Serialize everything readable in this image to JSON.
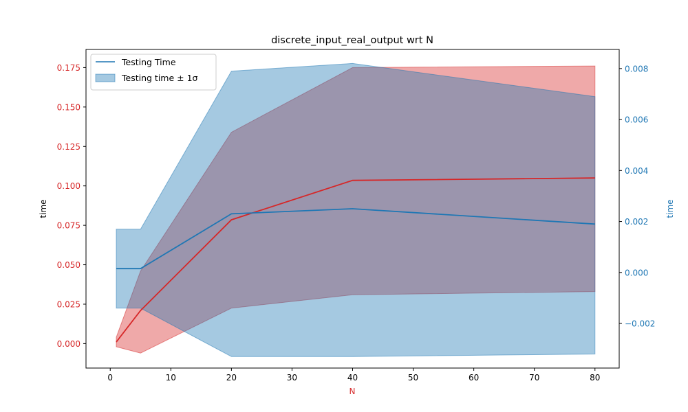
{
  "chart_data": {
    "type": "line",
    "title": "discrete_input_real_output wrt N",
    "xlabel": "N",
    "ylabel": "time",
    "y2label": "time",
    "xlim": [
      -4,
      84
    ],
    "ylim": [
      -0.0155,
      0.1865
    ],
    "y2lim": [
      -0.00375,
      0.00875
    ],
    "xticks": [
      0,
      10,
      20,
      30,
      40,
      50,
      60,
      70,
      80
    ],
    "yticks": [
      0.0,
      0.025,
      0.05,
      0.075,
      0.1,
      0.125,
      0.15,
      0.175
    ],
    "yticklabels": [
      "0.000",
      "0.025",
      "0.050",
      "0.075",
      "0.100",
      "0.125",
      "0.150",
      "0.175"
    ],
    "y2ticks": [
      -0.002,
      0.0,
      0.002,
      0.004,
      0.006,
      0.008
    ],
    "y2ticklabels": [
      "−0.002",
      "0.000",
      "0.002",
      "0.004",
      "0.006",
      "0.008"
    ],
    "grid": false,
    "legend_position": "top-left",
    "x": [
      1,
      5,
      20,
      40,
      80
    ],
    "series": [
      {
        "axis": "left",
        "color": "#d62728",
        "mean": [
          0.001,
          0.021,
          0.0785,
          0.1035,
          0.105
        ],
        "upper": [
          0.004,
          0.046,
          0.134,
          0.175,
          0.176
        ],
        "lower": [
          -0.002,
          -0.006,
          0.0225,
          0.031,
          0.033
        ]
      },
      {
        "name": "Testing Time",
        "band_name": "Testing time ± 1σ",
        "axis": "right",
        "color": "#1f77b4",
        "mean": [
          0.00015,
          0.00015,
          0.0023,
          0.0025,
          0.0019
        ],
        "upper": [
          0.0017,
          0.0017,
          0.0079,
          0.0082,
          0.0069
        ],
        "lower": [
          -0.0014,
          -0.0014,
          -0.0033,
          -0.0033,
          -0.0032
        ]
      }
    ],
    "colors": {
      "left_axis": "#d62728",
      "right_axis": "#1f77b4"
    }
  }
}
